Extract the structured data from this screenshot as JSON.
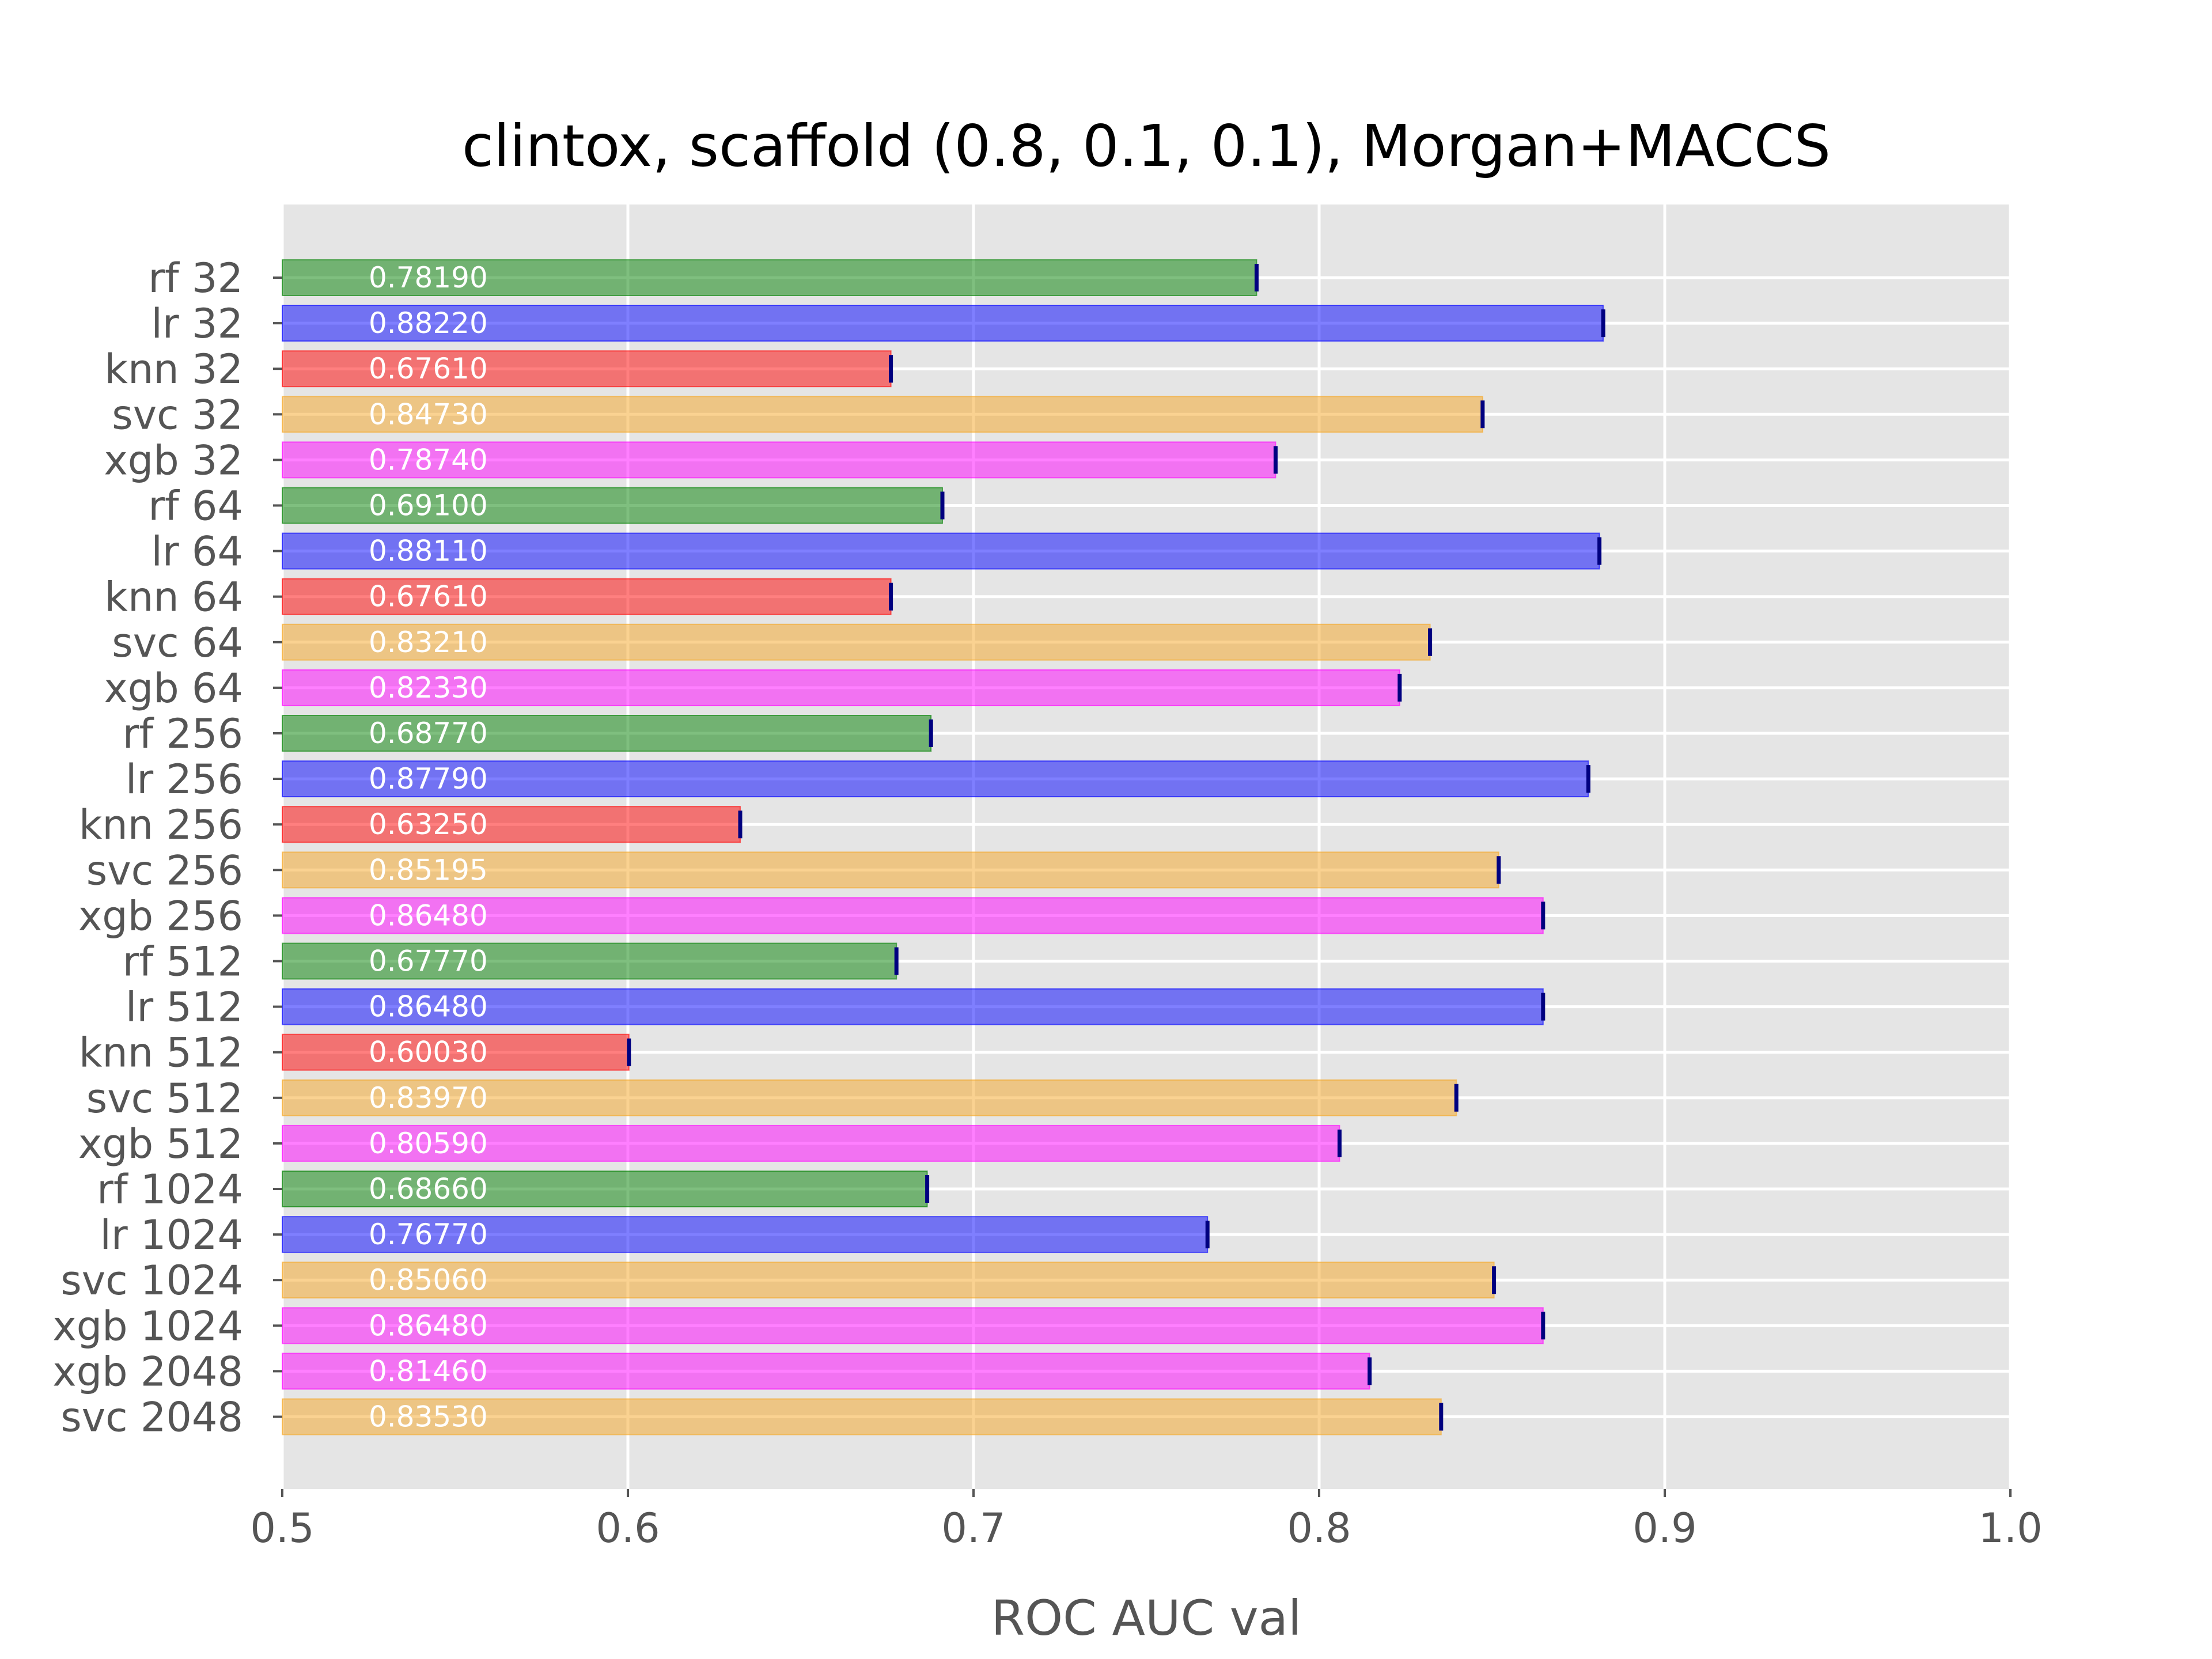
{
  "chart_data": {
    "type": "bar",
    "orientation": "horizontal",
    "title": "clintox, scaffold (0.8, 0.1, 0.1), Morgan+MACCS",
    "xlabel": "ROC AUC val",
    "ylabel": "",
    "xlim": [
      0.5,
      1.0
    ],
    "xticks": [
      "0.5",
      "0.6",
      "0.7",
      "0.8",
      "0.9",
      "1.0"
    ],
    "grid": true,
    "legend": "none",
    "categories": [
      "rf 32",
      "lr 32",
      "knn 32",
      "svc 32",
      "xgb 32",
      "rf 64",
      "lr 64",
      "knn 64",
      "svc 64",
      "xgb 64",
      "rf 256",
      "lr 256",
      "knn 256",
      "svc 256",
      "xgb 256",
      "rf 512",
      "lr 512",
      "knn 512",
      "svc 512",
      "xgb 512",
      "rf 1024",
      "lr 1024",
      "svc 1024",
      "xgb 1024",
      "xgb 2048",
      "svc 2048"
    ],
    "values": [
      0.7819,
      0.8822,
      0.6761,
      0.8473,
      0.7874,
      0.691,
      0.8811,
      0.6761,
      0.8321,
      0.8233,
      0.6877,
      0.8779,
      0.6325,
      0.85195,
      0.8648,
      0.6777,
      0.8648,
      0.6003,
      0.8397,
      0.8059,
      0.6866,
      0.7677,
      0.8506,
      0.8648,
      0.8146,
      0.8353
    ],
    "value_labels": [
      "0.78190",
      "0.88220",
      "0.67610",
      "0.84730",
      "0.78740",
      "0.69100",
      "0.88110",
      "0.67610",
      "0.83210",
      "0.82330",
      "0.68770",
      "0.87790",
      "0.63250",
      "0.85195",
      "0.86480",
      "0.67770",
      "0.86480",
      "0.60030",
      "0.83970",
      "0.80590",
      "0.68660",
      "0.76770",
      "0.85060",
      "0.86480",
      "0.81460",
      "0.83530"
    ],
    "colors": {
      "rf": "#008000",
      "lr": "#0000ff",
      "knn": "#ff0000",
      "svc": "#f5a623",
      "xgb": "#ff00ff",
      "error_cap": "#000080",
      "panel_background": "#e5e5e5",
      "grid": "#ffffff"
    }
  }
}
